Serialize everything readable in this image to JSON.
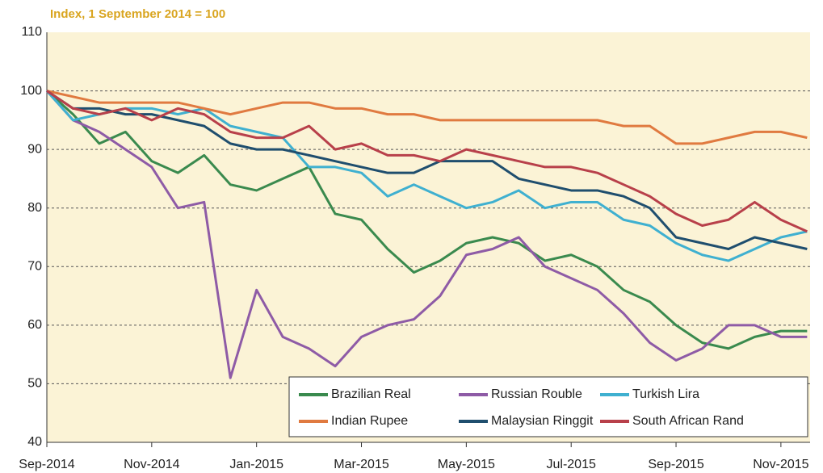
{
  "chart_data": {
    "type": "line",
    "title": "Index, 1 September 2014 = 100",
    "categories": [
      "Sep-2014",
      null,
      null,
      null,
      "Nov-2014",
      null,
      null,
      null,
      "Jan-2015",
      null,
      null,
      null,
      "Mar-2015",
      null,
      null,
      null,
      "May-2015",
      null,
      null,
      null,
      "Jul-2015",
      null,
      null,
      null,
      "Sep-2015",
      null,
      null,
      null,
      "Nov-2015",
      null
    ],
    "series": [
      {
        "name": "Brazilian Real",
        "color": "#3a8a4e",
        "values": [
          100,
          96,
          91,
          93,
          88,
          86,
          89,
          84,
          83,
          85,
          87,
          79,
          78,
          73,
          69,
          71,
          74,
          75,
          74,
          71,
          72,
          70,
          66,
          64,
          60,
          57,
          56,
          58,
          59,
          59
        ]
      },
      {
        "name": "Russian Rouble",
        "color": "#8e5ba6",
        "values": [
          100,
          95,
          93,
          90,
          87,
          80,
          81,
          51,
          66,
          58,
          56,
          53,
          58,
          60,
          61,
          65,
          72,
          73,
          75,
          70,
          68,
          66,
          62,
          57,
          54,
          56,
          60,
          60,
          58,
          58
        ]
      },
      {
        "name": "Turkish Lira",
        "color": "#3fb0d0",
        "values": [
          100,
          95,
          96,
          97,
          97,
          96,
          97,
          94,
          93,
          92,
          87,
          87,
          86,
          82,
          84,
          82,
          80,
          81,
          83,
          80,
          81,
          81,
          78,
          77,
          74,
          72,
          71,
          73,
          75,
          76
        ]
      },
      {
        "name": "Indian Rupee",
        "color": "#e07a40",
        "values": [
          100,
          99,
          98,
          98,
          98,
          98,
          97,
          96,
          97,
          98,
          98,
          97,
          97,
          96,
          96,
          95,
          95,
          95,
          95,
          95,
          95,
          95,
          94,
          94,
          91,
          91,
          92,
          93,
          93,
          92
        ]
      },
      {
        "name": "Malaysian Ringgit",
        "color": "#1f4e6e",
        "values": [
          100,
          97,
          97,
          96,
          96,
          95,
          94,
          91,
          90,
          90,
          89,
          88,
          87,
          86,
          86,
          88,
          88,
          88,
          85,
          84,
          83,
          83,
          82,
          80,
          75,
          74,
          73,
          75,
          74,
          73
        ]
      },
      {
        "name": "South African Rand",
        "color": "#b8404a",
        "values": [
          100,
          97,
          96,
          97,
          95,
          97,
          96,
          93,
          92,
          92,
          94,
          90,
          91,
          89,
          89,
          88,
          90,
          89,
          88,
          87,
          87,
          86,
          84,
          82,
          79,
          77,
          78,
          81,
          78,
          76
        ]
      }
    ],
    "ylim": [
      40,
      110
    ],
    "yticks": [
      40,
      50,
      60,
      70,
      80,
      90,
      100,
      110
    ],
    "grid": true
  }
}
